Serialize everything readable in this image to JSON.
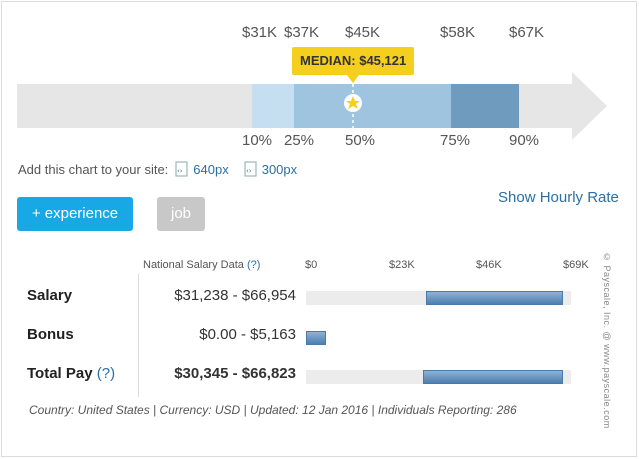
{
  "range_chart": {
    "value_labels": [
      "$31K",
      "$37K",
      "$45K",
      "$58K",
      "$67K"
    ],
    "percentile_labels": [
      "10%",
      "25%",
      "50%",
      "75%",
      "90%"
    ],
    "median_label": "MEDIAN: $45,121",
    "colors": {
      "band_outer": "#c5dff0",
      "band_mid": "#9ec4e0",
      "band_high": "#6f9bbf",
      "track": "#e6e6e6",
      "star": "#f5cf1e"
    }
  },
  "embed": {
    "text": "Add this chart to your site:",
    "link_640": "640px",
    "link_300": "300px"
  },
  "hourly_link": "Show Hourly Rate",
  "buttons": {
    "experience": "+ experience",
    "job": "job"
  },
  "table": {
    "header_label": "National Salary Data",
    "header_help": "(?)",
    "axis_ticks": [
      "$0",
      "$23K",
      "$46K",
      "$69K"
    ],
    "rows": [
      {
        "label": "Salary",
        "help": "",
        "value": "$31,238 - $66,954",
        "range": [
          31238,
          66954
        ]
      },
      {
        "label": "Bonus",
        "help": "",
        "value": "$0.00 - $5,163",
        "range": [
          0,
          5163
        ]
      },
      {
        "label": "Total Pay",
        "help": "(?)",
        "value": "$30,345 - $66,823",
        "range": [
          30345,
          66823
        ]
      }
    ]
  },
  "footer": "Country: United States | Currency: USD | Updated: 12 Jan 2016 | Individuals Reporting: 286",
  "watermark": "© Payscale, Inc. @ www.payscale.com"
}
